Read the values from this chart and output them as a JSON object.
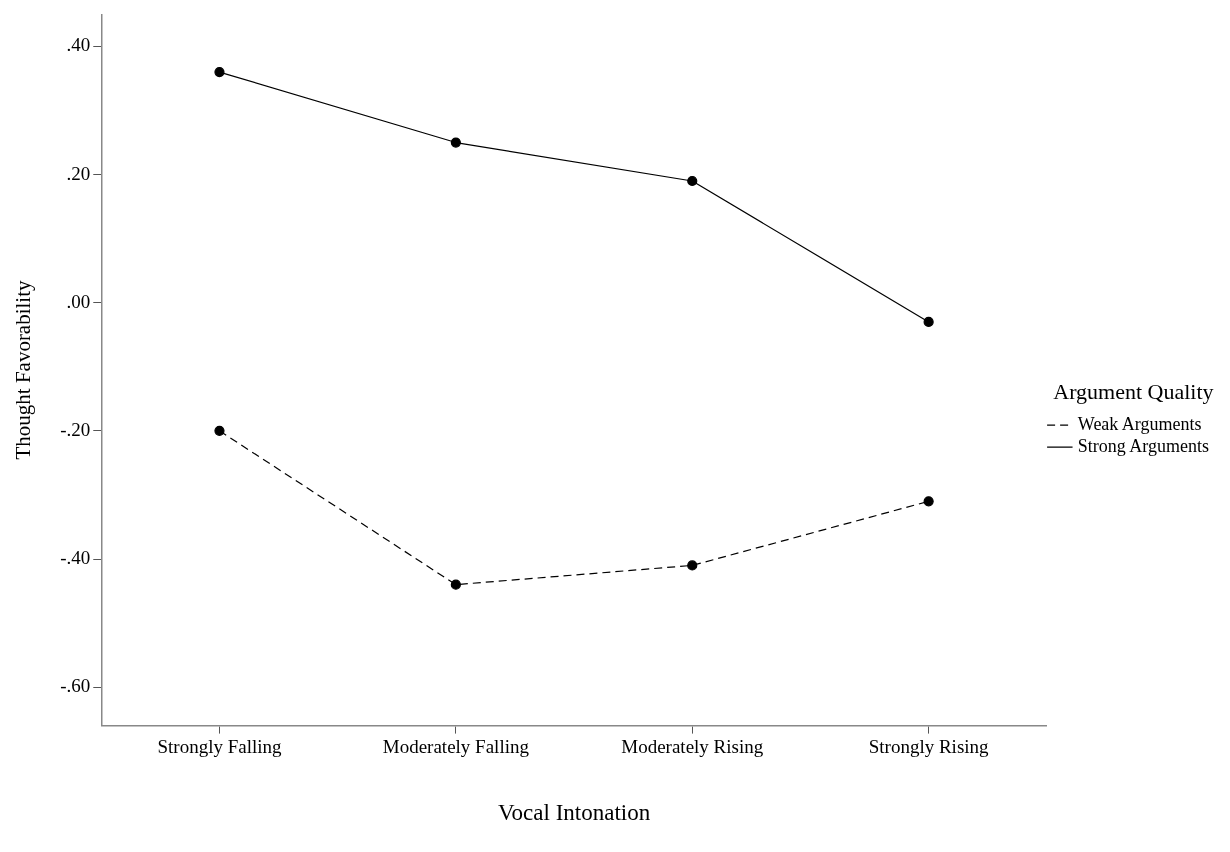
{
  "chart_data": {
    "type": "line",
    "xlabel": "Vocal Intonation",
    "ylabel": "Thought Favorability",
    "legend_title": "Argument Quality",
    "categories": [
      "Strongly Falling",
      "Moderately Falling",
      "Moderately Rising",
      "Strongly Rising"
    ],
    "series": [
      {
        "name": "Weak Arguments",
        "color": "#000000",
        "line_style": "dashed",
        "values": [
          -0.2,
          -0.44,
          -0.41,
          -0.31
        ]
      },
      {
        "name": "Strong Arguments",
        "color": "#000000",
        "line_style": "solid",
        "values": [
          0.36,
          0.25,
          0.19,
          -0.03
        ]
      }
    ],
    "ylim": [
      -0.66,
      0.45
    ],
    "yticks": [
      {
        "value": 0.4,
        "label": ".40"
      },
      {
        "value": 0.2,
        "label": ".20"
      },
      {
        "value": 0,
        "label": ".00"
      },
      {
        "value": -0.2,
        "label": "-.20"
      },
      {
        "value": -0.4,
        "label": "-.40"
      },
      {
        "value": -0.6,
        "label": "-.60"
      }
    ],
    "grid": false,
    "legend": "right",
    "marker": "circle"
  }
}
